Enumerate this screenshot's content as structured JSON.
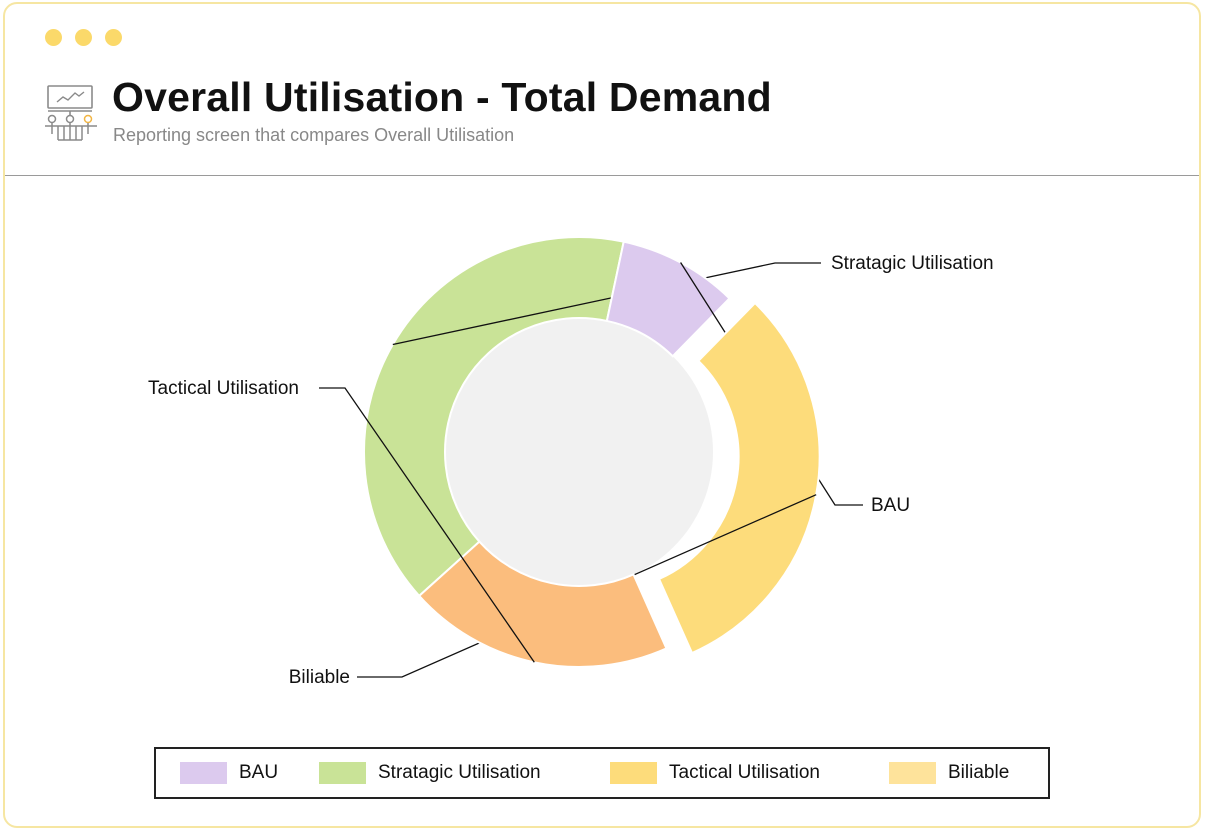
{
  "window": {
    "dot_color": "#fbd96a",
    "border_color": "#f6e6a2"
  },
  "header": {
    "icon": "presentation-analytics-icon",
    "title": "Overall Utilisation - Total Demand",
    "subtitle": "Reporting screen that compares Overall Utilisation"
  },
  "chart_data": {
    "type": "pie",
    "variant": "donut",
    "center_color": "#f1f1f1",
    "slices": [
      {
        "label": "Stratagic Utilisation",
        "value": 40,
        "color": "#c9e397"
      },
      {
        "label": "BAU",
        "value": 9,
        "color": "#dccaee"
      },
      {
        "label": "Biliable",
        "value": 31,
        "color": "#fddc7b",
        "exploded": true
      },
      {
        "label": "Tactical Utilisation",
        "value": 20,
        "color": "#fbbd7d"
      }
    ]
  },
  "legend": {
    "items": [
      {
        "label": "BAU",
        "color": "#dccaee"
      },
      {
        "label": "Stratagic Utilisation",
        "color": "#c9e397"
      },
      {
        "label": "Tactical Utilisation",
        "color": "#fddc7b"
      },
      {
        "label": "Biliable",
        "color": "#fee39b"
      }
    ]
  }
}
